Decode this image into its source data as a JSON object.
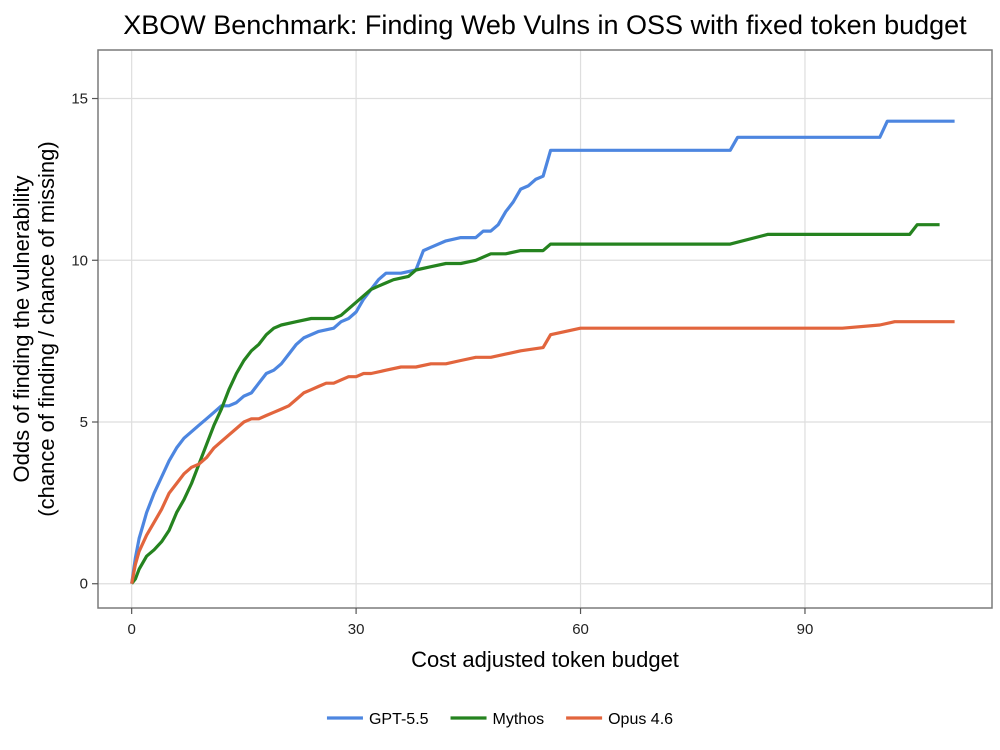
{
  "chart_data": {
    "type": "line",
    "title": "XBOW Benchmark: Finding Web Vulns in OSS with fixed token budget",
    "xlabel": "Cost adjusted token budget",
    "ylabel_line1": "Odds of finding the vulnerability",
    "ylabel_line2": "(chance of finding / chance of missing)",
    "xlim": [
      -4.5,
      115
    ],
    "ylim": [
      -0.75,
      16.5
    ],
    "x_ticks": [
      0,
      30,
      60,
      90
    ],
    "x_tick_labels": [
      "0",
      "30",
      "60",
      "90"
    ],
    "y_ticks": [
      0,
      5,
      10,
      15
    ],
    "y_tick_labels": [
      "0",
      "5",
      "10",
      "15"
    ],
    "grid": true,
    "legend_position": "bottom",
    "series": [
      {
        "name": "GPT-5.5",
        "color": "#4d86e0",
        "x": [
          0,
          0.5,
          1,
          1.5,
          2,
          3,
          4,
          5,
          6,
          7,
          8,
          9,
          10,
          11,
          12,
          13,
          14,
          15,
          16,
          17,
          18,
          19,
          20,
          21,
          22,
          23,
          25,
          27,
          28,
          29,
          30,
          31,
          32,
          33,
          34,
          36,
          38,
          39,
          40,
          42,
          44,
          46,
          47,
          48,
          49,
          50,
          51,
          52,
          53,
          54,
          55,
          56,
          58,
          60,
          65,
          70,
          75,
          80,
          81,
          82,
          85,
          90,
          95,
          100,
          101,
          103,
          105,
          110
        ],
        "y": [
          0,
          0.8,
          1.4,
          1.8,
          2.2,
          2.8,
          3.3,
          3.8,
          4.2,
          4.5,
          4.7,
          4.9,
          5.1,
          5.3,
          5.5,
          5.5,
          5.6,
          5.8,
          5.9,
          6.2,
          6.5,
          6.6,
          6.8,
          7.1,
          7.4,
          7.6,
          7.8,
          7.9,
          8.1,
          8.2,
          8.4,
          8.8,
          9.1,
          9.4,
          9.6,
          9.6,
          9.7,
          10.3,
          10.4,
          10.6,
          10.7,
          10.7,
          10.9,
          10.9,
          11.1,
          11.5,
          11.8,
          12.2,
          12.3,
          12.5,
          12.6,
          13.4,
          13.4,
          13.4,
          13.4,
          13.4,
          13.4,
          13.4,
          13.8,
          13.8,
          13.8,
          13.8,
          13.8,
          13.8,
          14.3,
          14.3,
          14.3,
          14.3
        ]
      },
      {
        "name": "Mythos",
        "color": "#25831f",
        "x": [
          0,
          0.5,
          1,
          2,
          3,
          4,
          5,
          6,
          7,
          8,
          9,
          10,
          11,
          12,
          13,
          14,
          15,
          16,
          17,
          18,
          19,
          20,
          22,
          24,
          27,
          28,
          29,
          30,
          31,
          32,
          33,
          34,
          35,
          37,
          38,
          40,
          42,
          44,
          46,
          48,
          50,
          52,
          55,
          56,
          58,
          60,
          65,
          70,
          75,
          80,
          85,
          90,
          95,
          100,
          104,
          105,
          108
        ],
        "y": [
          0,
          0.15,
          0.45,
          0.85,
          1.05,
          1.3,
          1.65,
          2.2,
          2.6,
          3.1,
          3.7,
          4.3,
          4.9,
          5.4,
          6.0,
          6.5,
          6.9,
          7.2,
          7.4,
          7.7,
          7.9,
          8.0,
          8.1,
          8.2,
          8.2,
          8.3,
          8.5,
          8.7,
          8.9,
          9.1,
          9.2,
          9.3,
          9.4,
          9.5,
          9.7,
          9.8,
          9.9,
          9.9,
          10.0,
          10.2,
          10.2,
          10.3,
          10.3,
          10.5,
          10.5,
          10.5,
          10.5,
          10.5,
          10.5,
          10.5,
          10.8,
          10.8,
          10.8,
          10.8,
          10.8,
          11.1,
          11.1
        ]
      },
      {
        "name": "Opus 4.6",
        "color": "#e2653d",
        "x": [
          0,
          0.5,
          1,
          2,
          3,
          4,
          5,
          6,
          7,
          8,
          9,
          10,
          11,
          12,
          13,
          14,
          15,
          16,
          17,
          18,
          19,
          20,
          21,
          22,
          23,
          24,
          25,
          26,
          27,
          28,
          29,
          30,
          31,
          32,
          34,
          36,
          38,
          40,
          42,
          44,
          46,
          48,
          50,
          52,
          55,
          56,
          58,
          60,
          65,
          70,
          75,
          80,
          85,
          90,
          95,
          100,
          102,
          105,
          110
        ],
        "y": [
          0,
          0.6,
          1.0,
          1.5,
          1.9,
          2.3,
          2.8,
          3.1,
          3.4,
          3.6,
          3.7,
          3.9,
          4.2,
          4.4,
          4.6,
          4.8,
          5.0,
          5.1,
          5.1,
          5.2,
          5.3,
          5.4,
          5.5,
          5.7,
          5.9,
          6.0,
          6.1,
          6.2,
          6.2,
          6.3,
          6.4,
          6.4,
          6.5,
          6.5,
          6.6,
          6.7,
          6.7,
          6.8,
          6.8,
          6.9,
          7.0,
          7.0,
          7.1,
          7.2,
          7.3,
          7.7,
          7.8,
          7.9,
          7.9,
          7.9,
          7.9,
          7.9,
          7.9,
          7.9,
          7.9,
          8.0,
          8.1,
          8.1,
          8.1
        ]
      }
    ]
  }
}
